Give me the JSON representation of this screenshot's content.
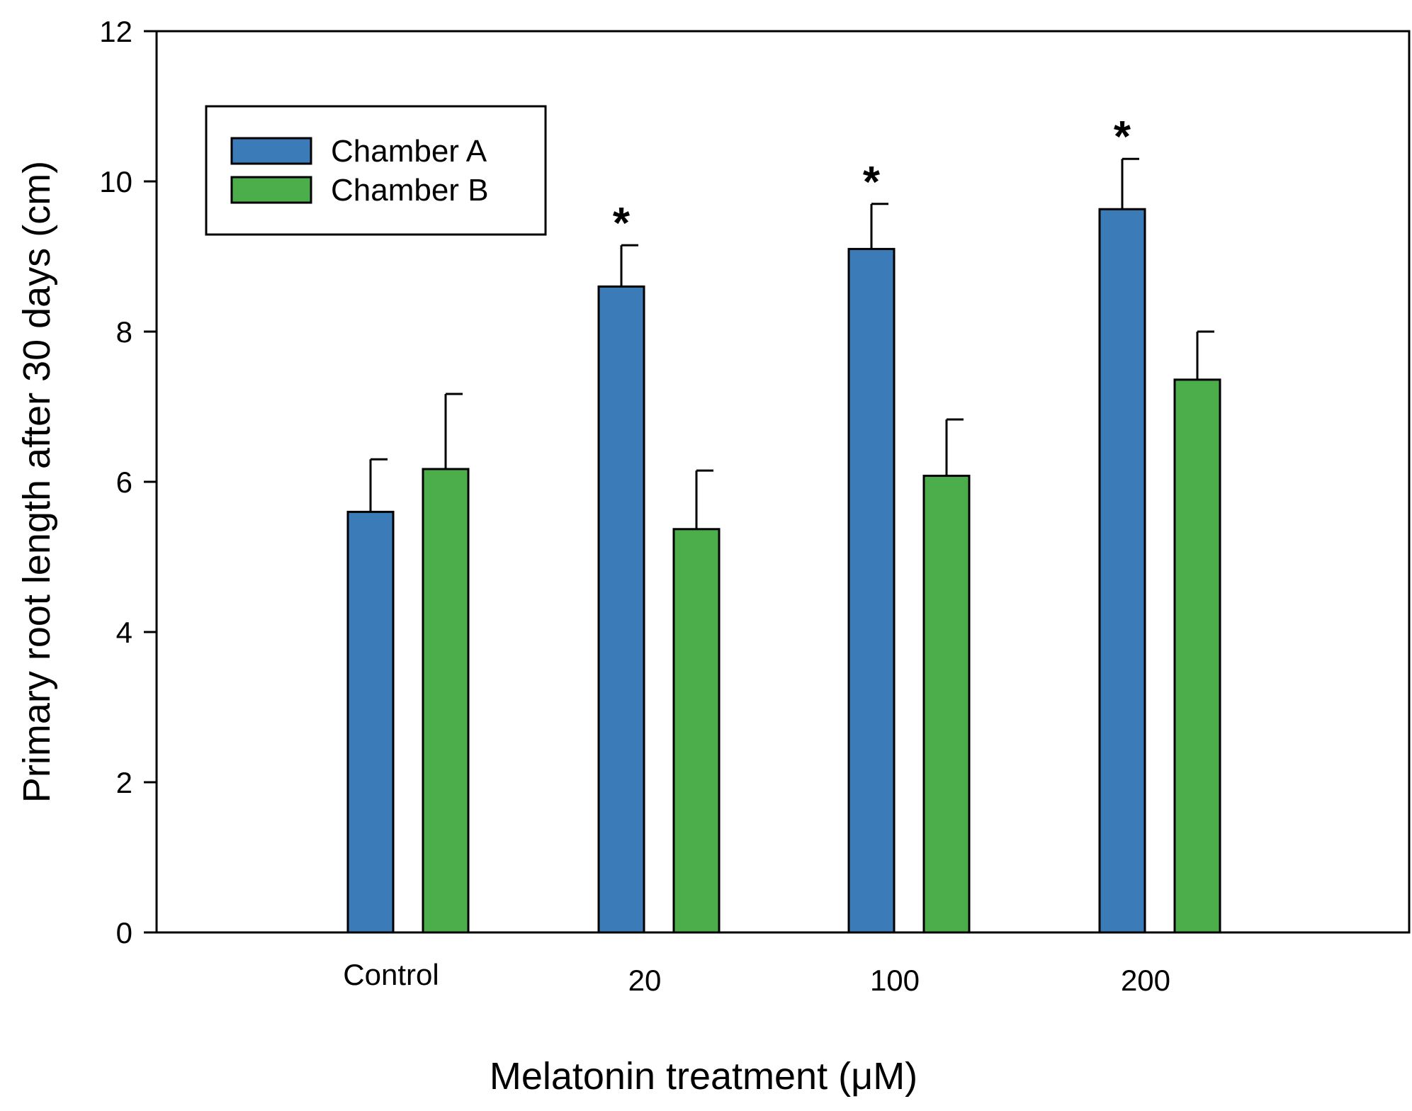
{
  "chart_data": {
    "type": "bar",
    "title": "",
    "xlabel": "Melatonin treatment (μM)",
    "ylabel": "Primary root length after 30 days (cm)",
    "ylim": [
      0,
      12
    ],
    "yticks": [
      0,
      2,
      4,
      6,
      8,
      10,
      12
    ],
    "categories": [
      "Control",
      "20",
      "100",
      "200"
    ],
    "series": [
      {
        "name": "Chamber A",
        "color": "#3a7bb8",
        "values": [
          5.6,
          8.6,
          9.1,
          9.63
        ],
        "errors": [
          0.7,
          0.55,
          0.6,
          0.67
        ],
        "significance": [
          "",
          "*",
          "*",
          "*"
        ]
      },
      {
        "name": "Chamber B",
        "color": "#4cae4a",
        "values": [
          6.17,
          5.37,
          6.08,
          7.36
        ],
        "errors": [
          1.0,
          0.78,
          0.75,
          0.64
        ],
        "significance": [
          "",
          "",
          "",
          ""
        ]
      }
    ],
    "grid": false,
    "legend_position": "top-left"
  }
}
